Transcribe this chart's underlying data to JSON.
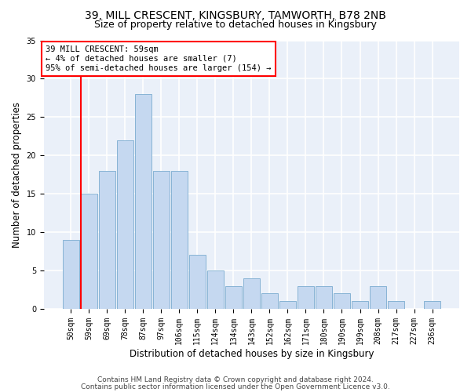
{
  "title1": "39, MILL CRESCENT, KINGSBURY, TAMWORTH, B78 2NB",
  "title2": "Size of property relative to detached houses in Kingsbury",
  "xlabel": "Distribution of detached houses by size in Kingsbury",
  "ylabel": "Number of detached properties",
  "categories": [
    "50sqm",
    "59sqm",
    "69sqm",
    "78sqm",
    "87sqm",
    "97sqm",
    "106sqm",
    "115sqm",
    "124sqm",
    "134sqm",
    "143sqm",
    "152sqm",
    "162sqm",
    "171sqm",
    "180sqm",
    "190sqm",
    "199sqm",
    "208sqm",
    "217sqm",
    "227sqm",
    "236sqm"
  ],
  "values": [
    9,
    15,
    18,
    22,
    28,
    18,
    18,
    7,
    5,
    3,
    4,
    2,
    1,
    3,
    3,
    2,
    1,
    3,
    1,
    0,
    1
  ],
  "bar_color": "#c5d8f0",
  "bar_edgecolor": "#7aabcf",
  "annotation_text_line1": "39 MILL CRESCENT: 59sqm",
  "annotation_text_line2": "← 4% of detached houses are smaller (7)",
  "annotation_text_line3": "95% of semi-detached houses are larger (154) →",
  "annotation_box_color": "white",
  "annotation_border_color": "red",
  "vline_color": "red",
  "vline_x_index": 1,
  "ylim": [
    0,
    35
  ],
  "yticks": [
    0,
    5,
    10,
    15,
    20,
    25,
    30,
    35
  ],
  "bg_color": "#eaf0f9",
  "grid_color": "white",
  "footer_line1": "Contains HM Land Registry data © Crown copyright and database right 2024.",
  "footer_line2": "Contains public sector information licensed under the Open Government Licence v3.0.",
  "title1_fontsize": 10,
  "title2_fontsize": 9,
  "xlabel_fontsize": 8.5,
  "ylabel_fontsize": 8.5,
  "tick_fontsize": 7,
  "annotation_fontsize": 7.5,
  "footer_fontsize": 6.5
}
